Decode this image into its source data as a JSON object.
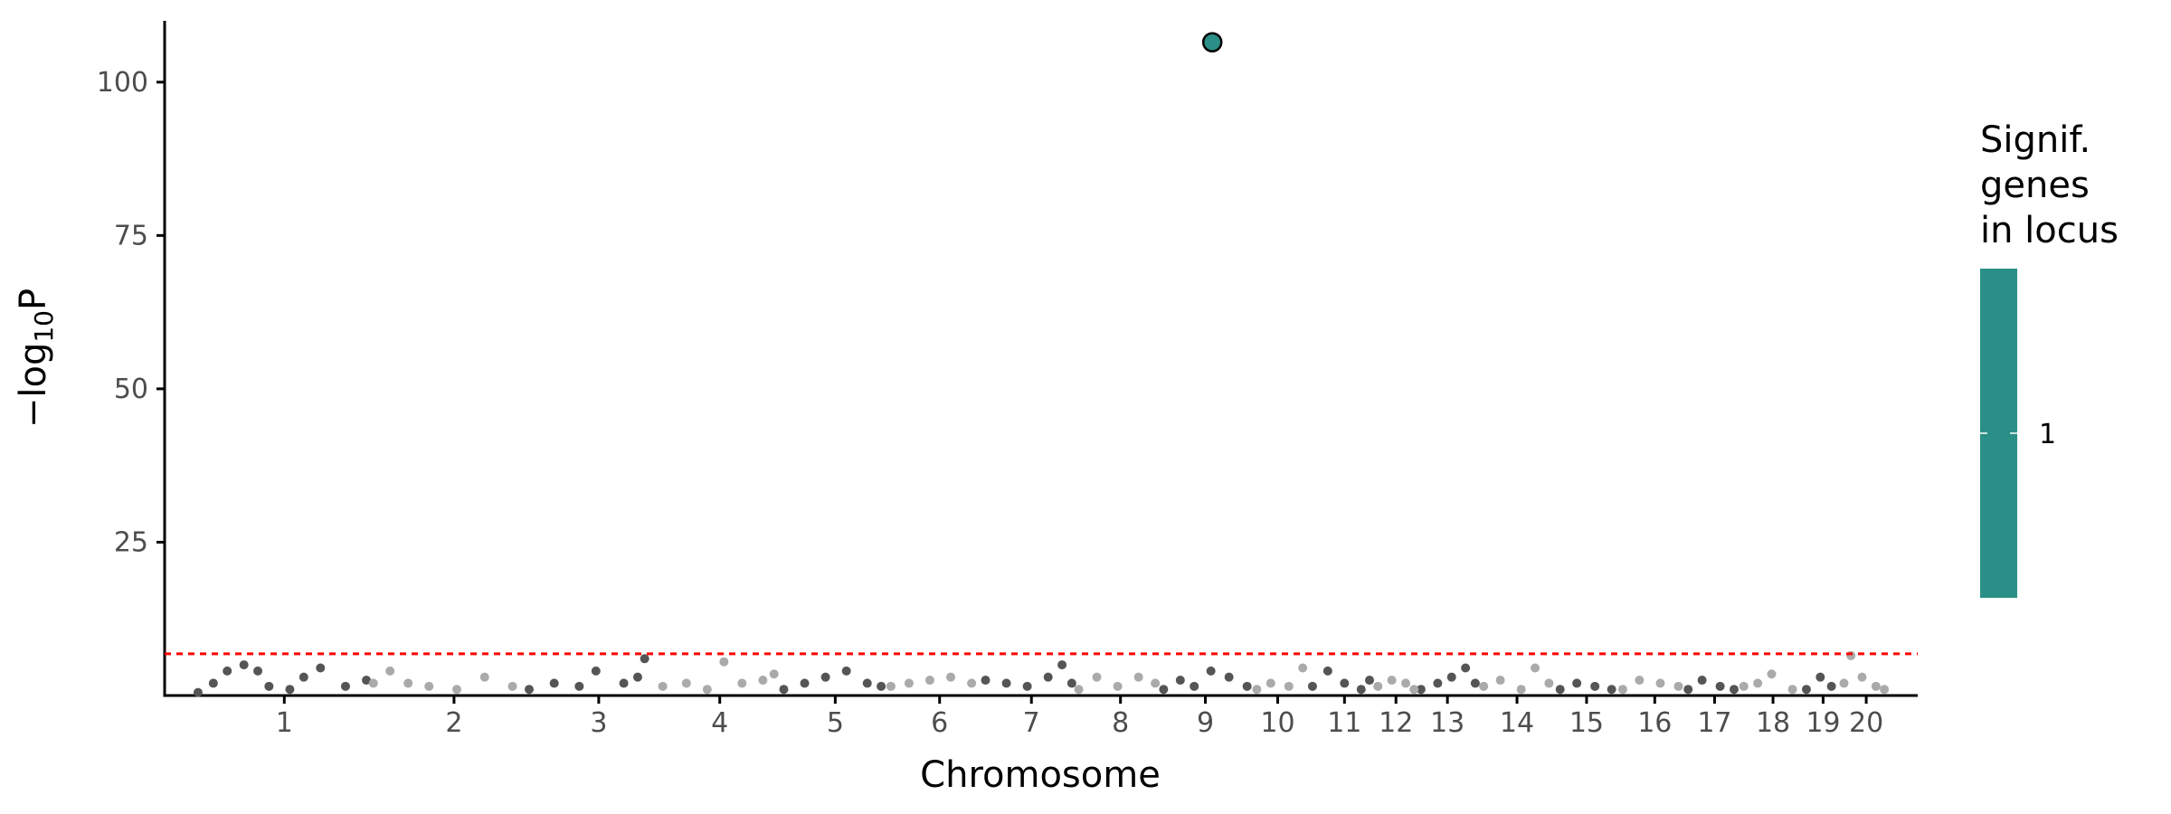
{
  "chart_data": {
    "type": "scatter",
    "x_label": "Chromosome",
    "y_label": [
      "−log",
      "10",
      "P"
    ],
    "xlim": [
      0,
      1260
    ],
    "ylim": [
      0,
      110
    ],
    "xticks": [
      {
        "value": 86,
        "label": "1"
      },
      {
        "value": 208,
        "label": "2"
      },
      {
        "value": 312,
        "label": "3"
      },
      {
        "value": 399,
        "label": "4"
      },
      {
        "value": 482,
        "label": "5"
      },
      {
        "value": 557,
        "label": "6"
      },
      {
        "value": 623,
        "label": "7"
      },
      {
        "value": 687,
        "label": "8"
      },
      {
        "value": 748,
        "label": "9"
      },
      {
        "value": 800,
        "label": "10"
      },
      {
        "value": 848,
        "label": "11"
      },
      {
        "value": 885,
        "label": "12"
      },
      {
        "value": 922,
        "label": "13"
      },
      {
        "value": 972,
        "label": "14"
      },
      {
        "value": 1022,
        "label": "15"
      },
      {
        "value": 1071,
        "label": "16"
      },
      {
        "value": 1114,
        "label": "17"
      },
      {
        "value": 1156,
        "label": "18"
      },
      {
        "value": 1192,
        "label": "19"
      },
      {
        "value": 1223,
        "label": "20"
      }
    ],
    "yticks": [
      25,
      50,
      75,
      100
    ],
    "threshold": 6.8,
    "threshold_color": "#ff0000",
    "series": [
      {
        "color": "#555555",
        "x": [
          24,
          35,
          45,
          57,
          67,
          75,
          90,
          100,
          112,
          130,
          145,
          262,
          280,
          298,
          310,
          330,
          340,
          345,
          445,
          460,
          475,
          490,
          505,
          515,
          590,
          605,
          620,
          635,
          645,
          652,
          718,
          730,
          740,
          752,
          765,
          778,
          825,
          836,
          848,
          860,
          866,
          903,
          915,
          925,
          935,
          942,
          1003,
          1015,
          1028,
          1040,
          1095,
          1105,
          1118,
          1128,
          1180,
          1190,
          1198
        ],
        "y": [
          0.5,
          2,
          4,
          5,
          4,
          1.5,
          1,
          3,
          4.5,
          1.5,
          2.5,
          1,
          2,
          1.5,
          4,
          2,
          3,
          6,
          1,
          2,
          3,
          4,
          2,
          1.5,
          2.5,
          2,
          1.5,
          3,
          5,
          2,
          1,
          2.5,
          1.5,
          4,
          3,
          1.5,
          1.5,
          4,
          2,
          1,
          2.5,
          1,
          2,
          3,
          4.5,
          2,
          1,
          2,
          1.5,
          1,
          1,
          2.5,
          1.5,
          1,
          1,
          3,
          1.5
        ]
      },
      {
        "color": "#aaaaaa",
        "x": [
          150,
          162,
          175,
          190,
          210,
          230,
          250,
          358,
          375,
          390,
          402,
          415,
          430,
          438,
          522,
          535,
          550,
          565,
          580,
          657,
          670,
          685,
          700,
          712,
          785,
          795,
          808,
          818,
          872,
          882,
          892,
          898,
          948,
          960,
          975,
          985,
          995,
          1048,
          1060,
          1075,
          1088,
          1135,
          1145,
          1155,
          1170,
          1207,
          1212,
          1220,
          1230,
          1236
        ],
        "y": [
          2,
          4,
          2,
          1.5,
          1,
          3,
          1.5,
          1.5,
          2,
          1,
          5.5,
          2,
          2.5,
          3.5,
          1.5,
          2,
          2.5,
          3,
          2,
          1,
          3,
          1.5,
          3,
          2,
          1,
          2,
          1.5,
          4.5,
          1.5,
          2.5,
          2,
          1,
          1.5,
          2.5,
          1,
          4.5,
          2,
          1,
          2.5,
          2,
          1.5,
          1.5,
          2,
          3.5,
          1,
          2,
          6.5,
          3,
          1.5,
          1
        ]
      },
      {
        "color": "#2a9087",
        "outline": "#000000",
        "x": [
          753
        ],
        "y": [
          106.5
        ]
      }
    ],
    "legend": {
      "title": [
        "Signif.",
        "genes",
        "in locus"
      ],
      "ticks": [
        1
      ],
      "color": "#2a9087"
    }
  }
}
